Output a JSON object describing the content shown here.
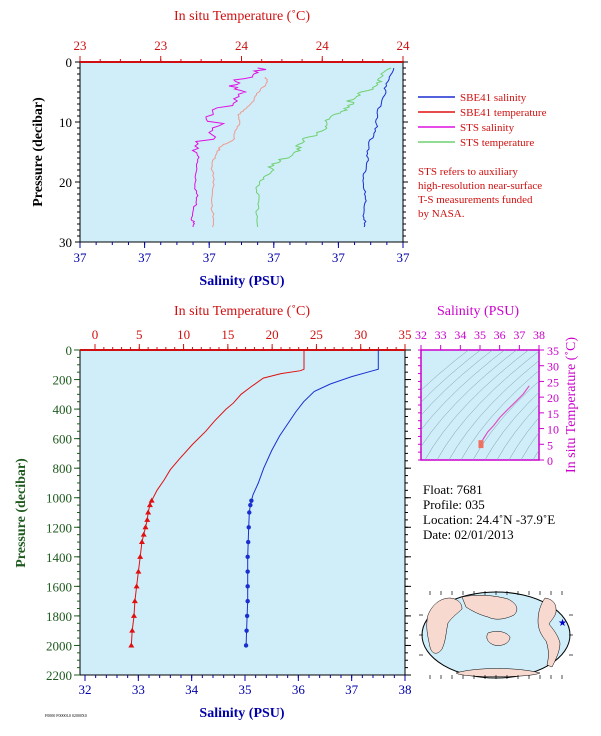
{
  "top_chart": {
    "top_axis_title": "In situ Temperature (˚C)",
    "top_ticks": [
      "23",
      "23",
      "24",
      "24",
      "24"
    ],
    "bottom_axis_title": "Salinity (PSU)",
    "bottom_ticks": [
      "37",
      "37",
      "37",
      "37",
      "37",
      "37"
    ],
    "left_axis_title": "Pressure (decibar)",
    "left_ticks": [
      "0",
      "10",
      "20",
      "30"
    ],
    "legend": [
      {
        "label": "SBE41 salinity",
        "color": "#1a2fd0"
      },
      {
        "label": "SBE41 temperature",
        "color": "#e01010"
      },
      {
        "label": "STS salinity",
        "color": "#e010e0"
      },
      {
        "label": "STS temperature",
        "color": "#70d070"
      }
    ],
    "note_lines": [
      "STS refers to auxiliary",
      "high-resolution near-surface",
      "T-S measurements funded",
      "by NASA."
    ]
  },
  "main_chart": {
    "top_axis_title": "In situ Temperature (˚C)",
    "top_ticks": [
      "0",
      "5",
      "10",
      "15",
      "20",
      "25",
      "30",
      "35"
    ],
    "bottom_axis_title": "Salinity (PSU)",
    "bottom_ticks": [
      "32",
      "33",
      "34",
      "35",
      "36",
      "37",
      "38"
    ],
    "left_axis_title": "Pressure (decibar)",
    "left_ticks": [
      "0",
      "200",
      "400",
      "600",
      "800",
      "1000",
      "1200",
      "1400",
      "1600",
      "1800",
      "2000",
      "2200"
    ]
  },
  "ts_chart": {
    "top_axis_title": "Salinity (PSU)",
    "top_ticks": [
      "32",
      "33",
      "34",
      "35",
      "36",
      "37",
      "38"
    ],
    "right_axis_title": "In situ Temperature (˚C)",
    "right_ticks": [
      "35",
      "30",
      "25",
      "20",
      "15",
      "10",
      "5",
      "0"
    ]
  },
  "float_info": {
    "float": "Float:  7681",
    "profile": "Profile:  035",
    "location": "Location:  24.4˚N  -37.9˚E",
    "date": "Date:  02/01/2013"
  },
  "footer_tag": "F0000 F0000L0 02000X0",
  "colors": {
    "plot_bg": "#cfeefa",
    "temperature": "#e01010",
    "salinity": "#1a2fd0",
    "sts_salinity": "#e010e0",
    "sts_temperature": "#70d070",
    "sts_temp_profile": "#f09a90",
    "ts_axis": "#cc00cc",
    "pressure_axis": "#1e5a1e",
    "sal_axis": "#0000aa"
  },
  "chart_data": [
    {
      "type": "line",
      "title": "",
      "xlabel": "Salinity (PSU)",
      "x2label": "In situ Temperature (˚C)",
      "ylabel": "Pressure (decibar)",
      "ylim": [
        0,
        30
      ],
      "y_inverted": true,
      "series": [
        {
          "name": "STS salinity",
          "points": [
            [
              0.55,
              1
            ],
            [
              0.5,
              3
            ],
            [
              0.48,
              5
            ],
            [
              0.44,
              8
            ],
            [
              0.4,
              11
            ],
            [
              0.37,
              14
            ],
            [
              0.36,
              17
            ],
            [
              0.36,
              20
            ],
            [
              0.36,
              23
            ],
            [
              0.35,
              26
            ],
            [
              0.35,
              27.5
            ]
          ]
        },
        {
          "name": "STS temperature",
          "points": [
            [
              0.96,
              1
            ],
            [
              0.93,
              3
            ],
            [
              0.88,
              5
            ],
            [
              0.83,
              7
            ],
            [
              0.79,
              9
            ],
            [
              0.75,
              11
            ],
            [
              0.7,
              13
            ],
            [
              0.66,
              15
            ],
            [
              0.61,
              17
            ],
            [
              0.57,
              19
            ],
            [
              0.55,
              21
            ],
            [
              0.55,
              24
            ],
            [
              0.55,
              27.5
            ]
          ]
        },
        {
          "name": "STS temperature profile (SBE)",
          "points": [
            [
              0.58,
              2.5
            ],
            [
              0.57,
              4
            ],
            [
              0.54,
              6
            ],
            [
              0.51,
              8
            ],
            [
              0.49,
              9
            ],
            [
              0.49,
              11
            ],
            [
              0.47,
              13
            ],
            [
              0.44,
              14
            ],
            [
              0.42,
              15
            ],
            [
              0.41,
              17
            ],
            [
              0.41,
              20
            ],
            [
              0.41,
              24
            ],
            [
              0.41,
              27.5
            ]
          ]
        },
        {
          "name": "SBE41 salinity",
          "points": [
            [
              0.97,
              1
            ],
            [
              0.95,
              4
            ],
            [
              0.93,
              7
            ],
            [
              0.92,
              10
            ],
            [
              0.9,
              13
            ],
            [
              0.89,
              16
            ],
            [
              0.88,
              19
            ],
            [
              0.88,
              22
            ],
            [
              0.88,
              25
            ],
            [
              0.88,
              27.5
            ]
          ]
        }
      ]
    },
    {
      "type": "line",
      "title": "",
      "xlabel": "Salinity (PSU)",
      "x2label": "In situ Temperature (˚C)",
      "ylabel": "Pressure (decibar)",
      "xlim": [
        32,
        38
      ],
      "x2lim": [
        0,
        35
      ],
      "ylim": [
        0,
        2200
      ],
      "y_inverted": true,
      "series": [
        {
          "name": "SBE41 temperature",
          "axis": "x2",
          "points": [
            [
              23.6,
              0
            ],
            [
              23.6,
              130
            ],
            [
              23.2,
              140
            ],
            [
              21,
              160
            ],
            [
              19,
              190
            ],
            [
              17.6,
              250
            ],
            [
              16.5,
              300
            ],
            [
              15.6,
              360
            ],
            [
              14.8,
              400
            ],
            [
              13.5,
              480
            ],
            [
              12.5,
              550
            ],
            [
              11,
              640
            ],
            [
              9.5,
              740
            ],
            [
              8.5,
              810
            ],
            [
              7.8,
              880
            ],
            [
              7,
              950
            ],
            [
              6.4,
              1020
            ],
            [
              6.2,
              1050
            ],
            [
              6.0,
              1100
            ],
            [
              5.9,
              1150
            ],
            [
              5.7,
              1200
            ],
            [
              5.5,
              1250
            ],
            [
              5.3,
              1300
            ],
            [
              5.1,
              1400
            ],
            [
              4.9,
              1500
            ],
            [
              4.7,
              1600
            ],
            [
              4.5,
              1700
            ],
            [
              4.4,
              1800
            ],
            [
              4.2,
              1900
            ],
            [
              4.1,
              2000
            ]
          ]
        },
        {
          "name": "SBE41 salinity",
          "axis": "x",
          "points": [
            [
              37.5,
              0
            ],
            [
              37.5,
              130
            ],
            [
              37.4,
              140
            ],
            [
              37.0,
              180
            ],
            [
              36.6,
              230
            ],
            [
              36.3,
              280
            ],
            [
              36.1,
              350
            ],
            [
              35.95,
              420
            ],
            [
              35.8,
              500
            ],
            [
              35.65,
              580
            ],
            [
              35.5,
              680
            ],
            [
              35.35,
              800
            ],
            [
              35.25,
              900
            ],
            [
              35.15,
              980
            ],
            [
              35.12,
              1020
            ],
            [
              35.1,
              1050
            ],
            [
              35.08,
              1100
            ],
            [
              35.07,
              1200
            ],
            [
              35.06,
              1300
            ],
            [
              35.05,
              1400
            ],
            [
              35.05,
              1500
            ],
            [
              35.05,
              1600
            ],
            [
              35.05,
              1700
            ],
            [
              35.04,
              1800
            ],
            [
              35.03,
              1900
            ],
            [
              35.02,
              2000
            ]
          ]
        }
      ]
    },
    {
      "type": "scatter",
      "title": "",
      "xlabel": "Salinity (PSU)",
      "ylabel": "In situ Temperature (˚C)",
      "xlim": [
        32,
        38
      ],
      "ylim": [
        0,
        35
      ],
      "series": [
        {
          "name": "T-S profile",
          "points": [
            [
              37.5,
              23.6
            ],
            [
              37.2,
              21
            ],
            [
              36.8,
              18.5
            ],
            [
              36.4,
              16
            ],
            [
              36.0,
              13.5
            ],
            [
              35.7,
              11
            ],
            [
              35.4,
              9
            ],
            [
              35.2,
              7
            ],
            [
              35.1,
              6
            ],
            [
              35.05,
              5
            ],
            [
              35.02,
              4.1
            ]
          ]
        }
      ]
    }
  ]
}
